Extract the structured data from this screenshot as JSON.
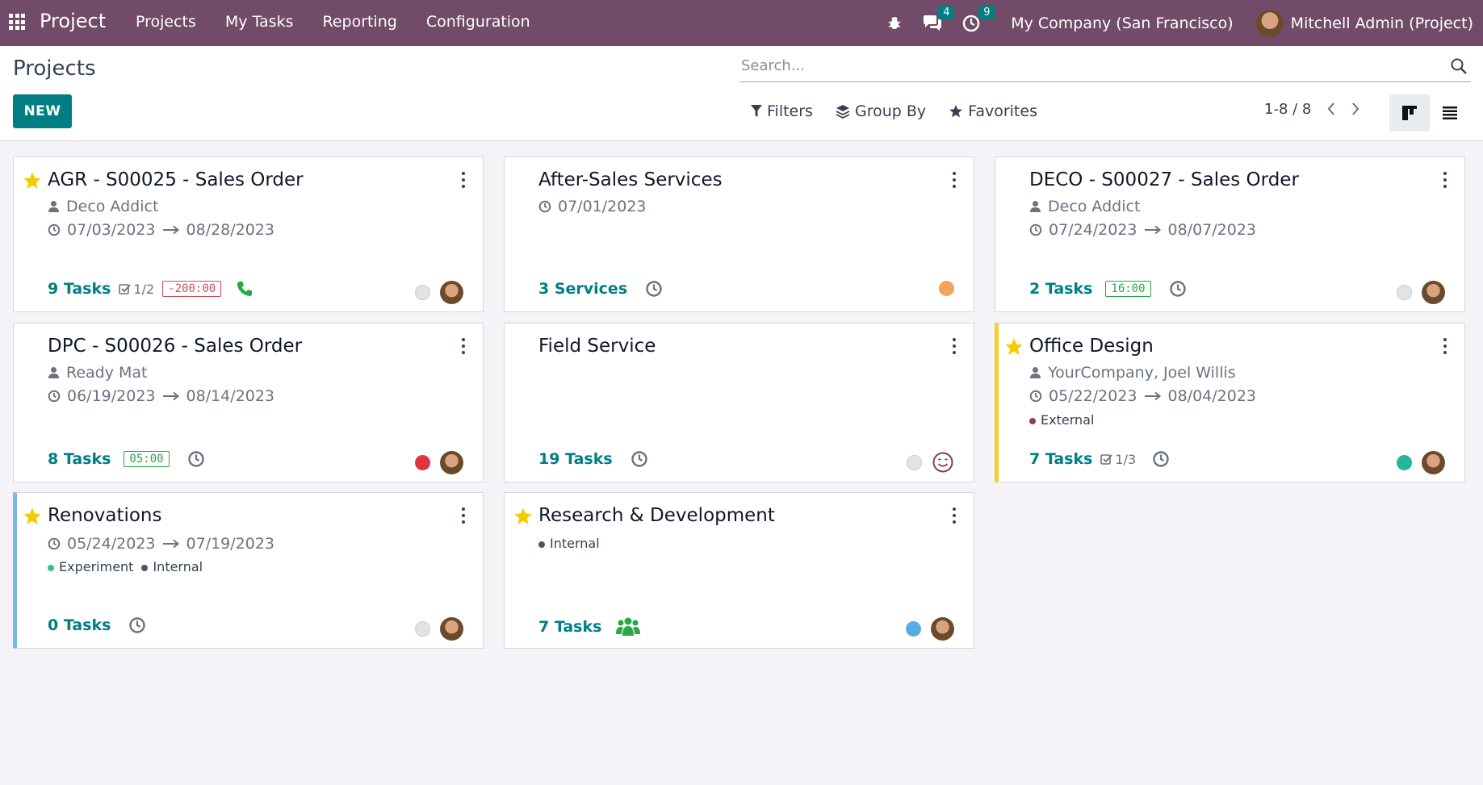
{
  "navbar": {
    "app_title": "Project",
    "menu": [
      "Projects",
      "My Tasks",
      "Reporting",
      "Configuration"
    ],
    "messages_count": "4",
    "activities_count": "9",
    "company": "My Company (San Francisco)",
    "user": "Mitchell Admin (Project)",
    "color": "#714b67"
  },
  "control": {
    "breadcrumb": "Projects",
    "new_label": "NEW",
    "search_placeholder": "Search...",
    "filters_label": "Filters",
    "groupby_label": "Group By",
    "favorites_label": "Favorites",
    "pager": "1-8 / 8",
    "accent": "#017e84"
  },
  "cards": [
    {
      "title": "AGR - S00025 - Sales Order",
      "favorite": true,
      "customer": "Deco Addict",
      "dates": "07/03/2023",
      "date_end": "08/28/2023",
      "tasks": "9 Tasks",
      "milestone": "1/2",
      "time_badge": "-200:00",
      "activity_icon": "phone-icon",
      "status_color": "#e2e3e5",
      "has_avatar": true
    },
    {
      "title": "After-Sales Services",
      "favorite": false,
      "dates": "07/01/2023",
      "tasks": "3 Services",
      "activity_icon": "clock-icon",
      "status_color": "#f0a45d",
      "has_avatar": false
    },
    {
      "title": "DECO - S00027 - Sales Order",
      "favorite": false,
      "customer": "Deco Addict",
      "dates": "07/24/2023",
      "date_end": "08/07/2023",
      "tasks": "2 Tasks",
      "time_badge": "16:00",
      "activity_icon": "clock-icon",
      "status_color": "#e2e3e5",
      "has_avatar": true
    },
    {
      "title": "DPC - S00026 - Sales Order",
      "favorite": false,
      "customer": "Ready Mat",
      "dates": "06/19/2023",
      "date_end": "08/14/2023",
      "tasks": "8 Tasks",
      "time_badge": "05:00",
      "activity_icon": "clock-icon",
      "status_color": "#e0353e",
      "has_avatar": true
    },
    {
      "title": "Field Service",
      "favorite": false,
      "tasks": "19 Tasks",
      "activity_icon": "clock-icon",
      "status_color": "#e2e3e5",
      "has_avatar": false,
      "smiley": true
    },
    {
      "title": "Office Design",
      "favorite": true,
      "customer": "YourCompany, Joel Willis",
      "dates": "05/22/2023",
      "date_end": "08/04/2023",
      "tags": [
        {
          "name": "External",
          "color": "#8f3b5e"
        }
      ],
      "tasks": "7 Tasks",
      "milestone": "1/3",
      "activity_icon": "clock-icon",
      "status_color": "#21b799",
      "has_avatar": true
    },
    {
      "title": "Renovations",
      "favorite": true,
      "dates": "05/24/2023",
      "date_end": "07/19/2023",
      "tags": [
        {
          "name": "Experiment",
          "color": "#2ec28e"
        },
        {
          "name": "Internal",
          "color": "#4b5563"
        }
      ],
      "tasks": "0 Tasks",
      "activity_icon": "clock-icon",
      "status_color": "#e2e3e5",
      "has_avatar": true
    },
    {
      "title": "Research & Development",
      "favorite": true,
      "tags": [
        {
          "name": "Internal",
          "color": "#4b5563"
        }
      ],
      "tasks": "7 Tasks",
      "activity_icon": "users-icon",
      "status_color": "#5aabe5",
      "has_avatar": true
    }
  ]
}
